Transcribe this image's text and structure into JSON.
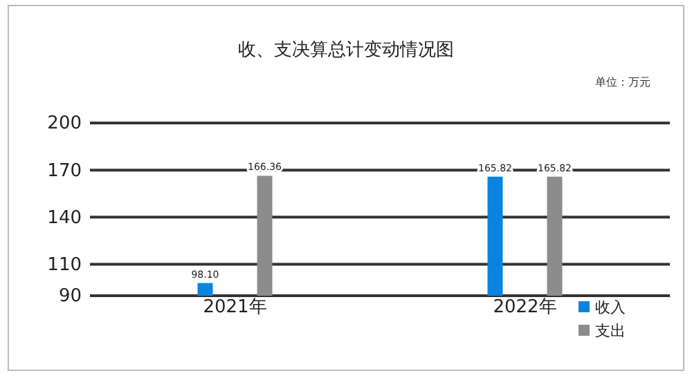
{
  "chart_data": {
    "type": "bar",
    "title": "收、支决算总计变动情况图",
    "annotations": [
      "单位：万元"
    ],
    "categories": [
      "2021年",
      "2022年"
    ],
    "series": [
      {
        "name": "收入",
        "color": "#0a84e0",
        "values": [
          98.1,
          165.82
        ],
        "value_labels": [
          "98.10",
          "165.82"
        ]
      },
      {
        "name": "支出",
        "color": "#8c8c8c",
        "values": [
          166.36,
          165.82
        ],
        "value_labels": [
          "166.36",
          "165.82"
        ]
      }
    ],
    "ylim": [
      90,
      200
    ],
    "yticks": [
      90,
      110,
      140,
      170,
      200
    ],
    "grid": "y",
    "legend": "bottom right"
  }
}
